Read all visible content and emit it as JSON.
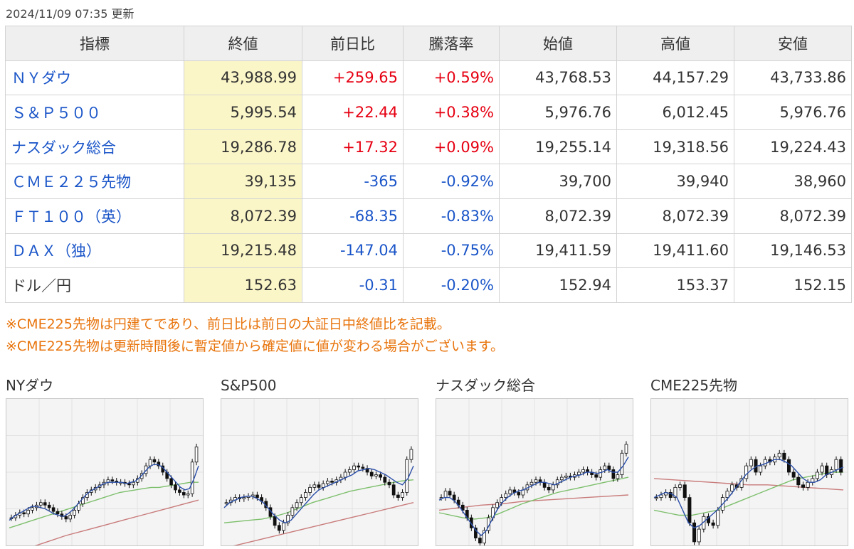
{
  "update_time": "2024/11/09 07:35 更新",
  "table": {
    "headers": [
      "指標",
      "終値",
      "前日比",
      "騰落率",
      "始値",
      "高値",
      "安値"
    ],
    "rows": [
      {
        "name": "ＮＹダウ",
        "close": "43,988.99",
        "change": "+259.65",
        "rate": "+0.59%",
        "open": "43,768.53",
        "high": "44,157.29",
        "low": "43,733.86",
        "dir": "pos",
        "link": true
      },
      {
        "name": "Ｓ＆Ｐ５００",
        "close": "5,995.54",
        "change": "+22.44",
        "rate": "+0.38%",
        "open": "5,976.76",
        "high": "6,012.45",
        "low": "5,976.76",
        "dir": "pos",
        "link": true
      },
      {
        "name": "ナスダック総合",
        "close": "19,286.78",
        "change": "+17.32",
        "rate": "+0.09%",
        "open": "19,255.14",
        "high": "19,318.56",
        "low": "19,224.43",
        "dir": "pos",
        "link": true
      },
      {
        "name": "ＣＭＥ２２５先物",
        "close": "39,135",
        "change": "-365",
        "rate": "-0.92%",
        "open": "39,700",
        "high": "39,940",
        "low": "38,960",
        "dir": "neg",
        "link": true
      },
      {
        "name": "ＦＴ１００（英）",
        "close": "8,072.39",
        "change": "-68.35",
        "rate": "-0.83%",
        "open": "8,072.39",
        "high": "8,072.39",
        "low": "8,072.39",
        "dir": "neg",
        "link": true
      },
      {
        "name": "ＤＡＸ（独）",
        "close": "19,215.48",
        "change": "-147.04",
        "rate": "-0.75%",
        "open": "19,411.59",
        "high": "19,411.60",
        "low": "19,146.53",
        "dir": "neg",
        "link": true
      },
      {
        "name": "ドル／円",
        "close": "152.63",
        "change": "-0.31",
        "rate": "-0.20%",
        "open": "152.94",
        "high": "153.37",
        "low": "152.15",
        "dir": "neg",
        "link": false
      }
    ]
  },
  "notes": [
    "※CME225先物は円建てであり、前日比は前日の大証日中終値比を記載。",
    "※CME225先物は更新時間後に暫定値から確定値に値が変わる場合がございます。"
  ],
  "colors": {
    "up": "#e60012",
    "down": "#1a55c8",
    "note": "#e8740c",
    "ma_short": "#2b4fa8",
    "ma_mid": "#7dbf6c",
    "ma_long": "#c97b7b",
    "close_bg": "#fbf6c8"
  },
  "charts": [
    {
      "title": "NYダウ",
      "closes": [
        0.14,
        0.16,
        0.18,
        0.17,
        0.2,
        0.22,
        0.24,
        0.26,
        0.24,
        0.22,
        0.19,
        0.17,
        0.15,
        0.13,
        0.16,
        0.2,
        0.25,
        0.3,
        0.34,
        0.36,
        0.38,
        0.4,
        0.42,
        0.44,
        0.43,
        0.42,
        0.42,
        0.41,
        0.4,
        0.42,
        0.45,
        0.49,
        0.55,
        0.6,
        0.58,
        0.55,
        0.5,
        0.45,
        0.4,
        0.36,
        0.34,
        0.32,
        0.33,
        0.58,
        0.7
      ],
      "ma5": [
        0.12,
        0.15,
        0.17,
        0.19,
        0.21,
        0.23,
        0.23,
        0.22,
        0.21,
        0.19,
        0.17,
        0.16,
        0.15,
        0.17,
        0.2,
        0.24,
        0.28,
        0.32,
        0.35,
        0.37,
        0.39,
        0.41,
        0.42,
        0.42,
        0.42,
        0.42,
        0.41,
        0.42,
        0.43,
        0.46,
        0.5,
        0.54,
        0.56,
        0.56,
        0.54,
        0.5,
        0.46,
        0.42,
        0.38,
        0.36,
        0.37,
        0.45,
        0.55
      ],
      "ma25": [
        0.06,
        0.08,
        0.1,
        0.12,
        0.14,
        0.16,
        0.18,
        0.2,
        0.22,
        0.24,
        0.26,
        0.28,
        0.3,
        0.32,
        0.34,
        0.35,
        0.36,
        0.37,
        0.38,
        0.38,
        0.39,
        0.4,
        0.41,
        0.42,
        0.42
      ],
      "ma75": [
        -0.15,
        -0.1,
        -0.05,
        0.0,
        0.04,
        0.08,
        0.12,
        0.16,
        0.2,
        0.24,
        0.28
      ]
    },
    {
      "title": "S&P500",
      "closes": [
        0.26,
        0.28,
        0.3,
        0.29,
        0.3,
        0.31,
        0.32,
        0.3,
        0.27,
        0.22,
        0.15,
        0.08,
        0.04,
        0.1,
        0.16,
        0.22,
        0.26,
        0.3,
        0.34,
        0.38,
        0.4,
        0.38,
        0.41,
        0.43,
        0.42,
        0.44,
        0.46,
        0.5,
        0.52,
        0.55,
        0.54,
        0.53,
        0.5,
        0.47,
        0.48,
        0.46,
        0.42,
        0.4,
        0.32,
        0.3,
        0.34,
        0.6,
        0.68
      ],
      "ma5": [
        0.22,
        0.26,
        0.28,
        0.3,
        0.31,
        0.31,
        0.29,
        0.26,
        0.21,
        0.16,
        0.12,
        0.1,
        0.12,
        0.17,
        0.22,
        0.27,
        0.32,
        0.36,
        0.38,
        0.4,
        0.42,
        0.44,
        0.46,
        0.48,
        0.51,
        0.52,
        0.53,
        0.52,
        0.5,
        0.48,
        0.45,
        0.42,
        0.4,
        0.45,
        0.55
      ],
      "ma25": [
        0.1,
        0.11,
        0.12,
        0.13,
        0.15,
        0.18,
        0.22,
        0.26,
        0.29,
        0.32,
        0.35,
        0.37,
        0.39,
        0.41,
        0.43,
        0.44
      ],
      "ma75": [
        -0.1,
        -0.06,
        -0.02,
        0.02,
        0.06,
        0.1,
        0.14,
        0.18,
        0.22,
        0.26
      ]
    },
    {
      "title": "ナスダック総合",
      "closes": [
        0.3,
        0.35,
        0.32,
        0.28,
        0.24,
        0.2,
        0.14,
        0.06,
        -0.02,
        -0.06,
        0.04,
        0.14,
        0.22,
        0.26,
        0.3,
        0.33,
        0.36,
        0.34,
        0.32,
        0.36,
        0.4,
        0.42,
        0.44,
        0.42,
        0.38,
        0.36,
        0.4,
        0.44,
        0.46,
        0.47,
        0.46,
        0.48,
        0.5,
        0.52,
        0.5,
        0.48,
        0.46,
        0.52,
        0.55,
        0.52,
        0.45,
        0.48,
        0.65,
        0.72
      ],
      "ma5": [
        0.28,
        0.3,
        0.3,
        0.27,
        0.22,
        0.16,
        0.1,
        0.04,
        0.0,
        0.04,
        0.12,
        0.2,
        0.26,
        0.3,
        0.33,
        0.35,
        0.36,
        0.38,
        0.4,
        0.42,
        0.42,
        0.41,
        0.4,
        0.42,
        0.44,
        0.46,
        0.47,
        0.48,
        0.5,
        0.5,
        0.49,
        0.5,
        0.52,
        0.5,
        0.5,
        0.55,
        0.62
      ],
      "ma25": [
        0.18,
        0.16,
        0.14,
        0.13,
        0.14,
        0.17,
        0.21,
        0.25,
        0.28,
        0.31,
        0.34,
        0.36,
        0.38,
        0.4,
        0.42,
        0.44,
        0.46
      ],
      "ma75": [
        0.2,
        0.22,
        0.24,
        0.25,
        0.27,
        0.28,
        0.29,
        0.3,
        0.31,
        0.32
      ]
    },
    {
      "title": "CME225先物",
      "closes": [
        0.3,
        0.32,
        0.34,
        0.3,
        0.38,
        0.4,
        0.3,
        0.1,
        -0.05,
        0.05,
        0.15,
        0.1,
        0.08,
        0.2,
        0.3,
        0.35,
        0.4,
        0.38,
        0.45,
        0.55,
        0.6,
        0.5,
        0.55,
        0.6,
        0.58,
        0.62,
        0.65,
        0.6,
        0.5,
        0.46,
        0.4,
        0.38,
        0.42,
        0.45,
        0.5,
        0.55,
        0.48,
        0.52,
        0.6,
        0.5
      ],
      "ma5": [
        0.3,
        0.32,
        0.34,
        0.33,
        0.3,
        0.2,
        0.1,
        0.06,
        0.08,
        0.12,
        0.16,
        0.2,
        0.25,
        0.3,
        0.36,
        0.42,
        0.48,
        0.52,
        0.55,
        0.56,
        0.58,
        0.6,
        0.6,
        0.58,
        0.55,
        0.5,
        0.45,
        0.42,
        0.42,
        0.44,
        0.48,
        0.5,
        0.52,
        0.54
      ],
      "ma25": [
        0.2,
        0.18,
        0.16,
        0.16,
        0.18,
        0.2,
        0.24,
        0.28,
        0.32,
        0.36,
        0.4,
        0.44,
        0.46,
        0.48,
        0.5,
        0.5
      ],
      "ma75": [
        0.45,
        0.44,
        0.43,
        0.42,
        0.41,
        0.4,
        0.4,
        0.39,
        0.38,
        0.37,
        0.36
      ]
    }
  ]
}
